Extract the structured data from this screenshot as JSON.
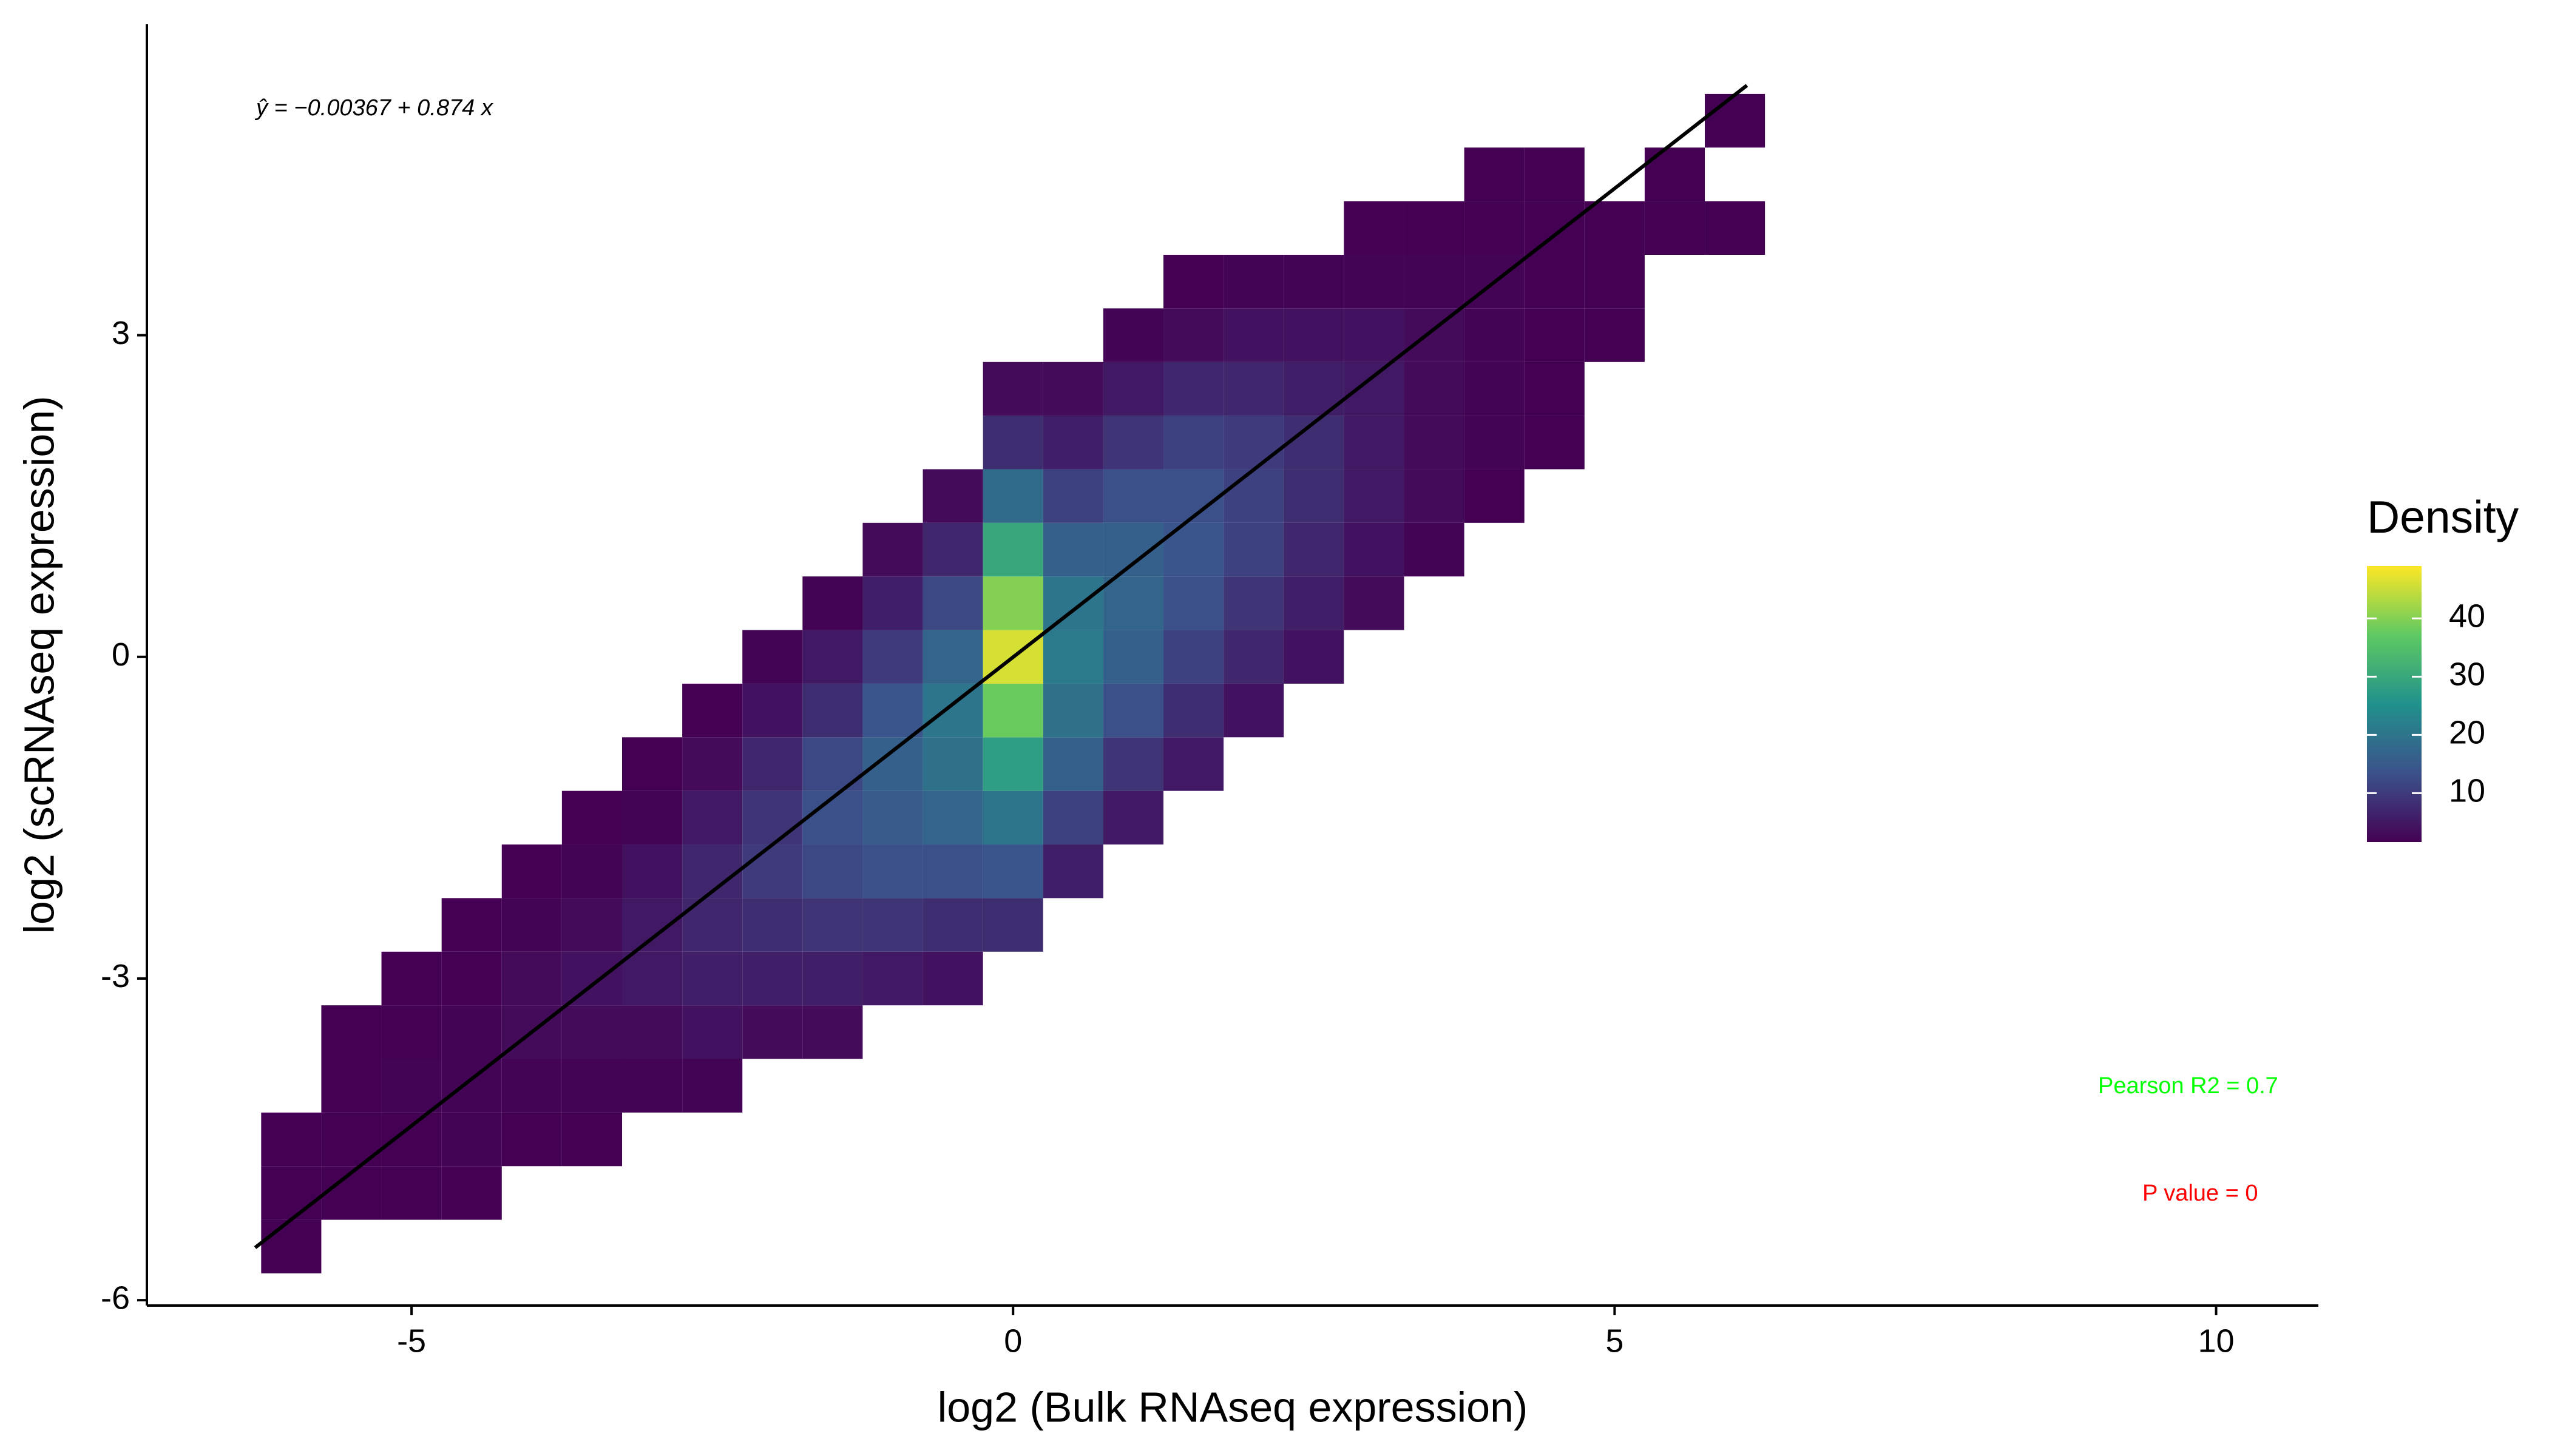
{
  "chart_data": {
    "type": "hexbin",
    "x_label": "log2 (Bulk RNAseq expression)",
    "y_label": "log2 (scRNAseq expression)",
    "xlim": [
      -7.2,
      10.85
    ],
    "ylim": [
      -6.05,
      5.9
    ],
    "xticks": [
      -5,
      0,
      5,
      10
    ],
    "yticks": [
      -6,
      -3,
      0,
      3
    ],
    "legend_title": "Density",
    "clim": [
      1.6,
      49
    ],
    "cticks": [
      10,
      20,
      30,
      40
    ],
    "colorscale": [
      "#440154",
      "#3b528b",
      "#21918c",
      "#5ec962",
      "#fde725"
    ],
    "fit_line": {
      "x": [
        -6.3,
        6.1
      ],
      "y": [
        -5.51,
        5.33
      ],
      "color": "#000000"
    },
    "annotations": {
      "equation": "ŷ = −0.00367 + 0.874 x",
      "pearson": "Pearson R2 =  0.7",
      "p_value": "P value =  0"
    },
    "columns": [
      {
        "x": -6,
        "y": [
          -5.5,
          -5,
          -4.5
        ],
        "values": [
          1,
          1,
          1
        ]
      },
      {
        "x": -5.5,
        "y": [
          -5,
          -4.5,
          -4,
          -3.5
        ],
        "values": [
          1,
          1,
          1,
          1
        ]
      },
      {
        "x": -5,
        "y": [
          -5,
          -4.5,
          -4,
          -3.5,
          -3
        ],
        "values": [
          1,
          1,
          2,
          1,
          1
        ]
      },
      {
        "x": -4.5,
        "y": [
          -5,
          -4.5,
          -4,
          -3.5,
          -3,
          -2.5
        ],
        "values": [
          1,
          2,
          2,
          2,
          1,
          1
        ]
      },
      {
        "x": -4,
        "y": [
          -4.5,
          -4,
          -3.5,
          -3,
          -2.5,
          -2
        ],
        "values": [
          1,
          2,
          3,
          3,
          2,
          1
        ]
      },
      {
        "x": -3.5,
        "y": [
          -4.5,
          -4,
          -3.5,
          -3,
          -2.5,
          -2,
          -1.5
        ],
        "values": [
          1,
          2,
          3,
          4,
          3,
          2,
          1
        ]
      },
      {
        "x": -3,
        "y": [
          -4,
          -3.5,
          -3,
          -2.5,
          -2,
          -1.5,
          -1
        ],
        "values": [
          2,
          3,
          5,
          5,
          4,
          2,
          1
        ]
      },
      {
        "x": -2.5,
        "y": [
          -4,
          -3.5,
          -3,
          -2.5,
          -2,
          -1.5,
          -1,
          -0.5
        ],
        "values": [
          2,
          4,
          6,
          7,
          7,
          5,
          3,
          1
        ]
      },
      {
        "x": -2,
        "y": [
          -3.5,
          -3,
          -2.5,
          -2,
          -1.5,
          -1,
          -0.5,
          0
        ],
        "values": [
          3,
          6,
          8,
          10,
          9,
          7,
          4,
          2
        ]
      },
      {
        "x": -1.5,
        "y": [
          -3.5,
          -3,
          -2.5,
          -2,
          -1.5,
          -1,
          -0.5,
          0,
          0.5
        ],
        "values": [
          3,
          6,
          9,
          12,
          13,
          12,
          8,
          5,
          2
        ]
      },
      {
        "x": -1,
        "y": [
          -3,
          -2.5,
          -2,
          -1.5,
          -1,
          -0.5,
          0,
          0.5,
          1
        ],
        "values": [
          5,
          9,
          13,
          15,
          16,
          14,
          10,
          6,
          3
        ]
      },
      {
        "x": -0.5,
        "y": [
          -3,
          -2.5,
          -2,
          -1.5,
          -1,
          -0.5,
          0,
          0.5,
          1,
          1.5
        ],
        "values": [
          4,
          8,
          13,
          17,
          19,
          20,
          17,
          12,
          7,
          3
        ]
      },
      {
        "x": 0,
        "y": [
          -2.5,
          -2,
          -1.5,
          -1,
          -0.5,
          0,
          0.5,
          1,
          1.5,
          2,
          2.5
        ],
        "values": [
          8,
          14,
          20,
          28,
          38,
          46,
          40,
          30,
          18,
          8,
          3
        ]
      },
      {
        "x": 0.5,
        "y": [
          -2,
          -1.5,
          -1,
          -0.5,
          0,
          0.5,
          1,
          1.5,
          2,
          2.5
        ],
        "values": [
          6,
          11,
          16,
          19,
          21,
          20,
          16,
          11,
          6,
          3
        ]
      },
      {
        "x": 1,
        "y": [
          -1.5,
          -1,
          -0.5,
          0,
          0.5,
          1,
          1.5,
          2,
          2.5,
          3
        ],
        "values": [
          5,
          9,
          13,
          16,
          17,
          16,
          13,
          9,
          5,
          2
        ]
      },
      {
        "x": 1.5,
        "y": [
          -1,
          -0.5,
          0,
          0.5,
          1,
          1.5,
          2,
          2.5,
          3,
          3.5
        ],
        "values": [
          5,
          8,
          11,
          13,
          14,
          13,
          11,
          7,
          3,
          1
        ]
      },
      {
        "x": 2,
        "y": [
          -0.5,
          0,
          0.5,
          1,
          1.5,
          2,
          2.5,
          3,
          3.5
        ],
        "values": [
          4,
          7,
          9,
          11,
          11,
          10,
          7,
          4,
          2
        ]
      },
      {
        "x": 2.5,
        "y": [
          0,
          0.5,
          1,
          1.5,
          2,
          2.5,
          3,
          3.5
        ],
        "values": [
          4,
          6,
          7,
          8,
          8,
          6,
          4,
          2
        ]
      },
      {
        "x": 3,
        "y": [
          0.5,
          1,
          1.5,
          2,
          2.5,
          3,
          3.5,
          4
        ],
        "values": [
          3,
          4,
          5,
          5,
          5,
          4,
          2,
          1
        ]
      },
      {
        "x": 3.5,
        "y": [
          1,
          1.5,
          2,
          2.5,
          3,
          3.5,
          4
        ],
        "values": [
          2,
          3,
          3,
          3,
          3,
          2,
          1
        ]
      },
      {
        "x": 4,
        "y": [
          1.5,
          2,
          2.5,
          3,
          3.5,
          4,
          4.5
        ],
        "values": [
          1,
          2,
          2,
          2,
          2,
          1,
          1
        ]
      },
      {
        "x": 4.5,
        "y": [
          2,
          2.5,
          3,
          3.5,
          4,
          4.5
        ],
        "values": [
          1,
          1,
          1,
          1,
          1,
          1
        ]
      },
      {
        "x": 5,
        "y": [
          3,
          3.5,
          4
        ],
        "values": [
          1,
          1,
          1
        ]
      },
      {
        "x": 5.5,
        "y": [
          4,
          4.5
        ],
        "values": [
          1,
          1
        ]
      },
      {
        "x": 6,
        "y": [
          4,
          5
        ],
        "values": [
          1,
          1
        ]
      }
    ]
  }
}
